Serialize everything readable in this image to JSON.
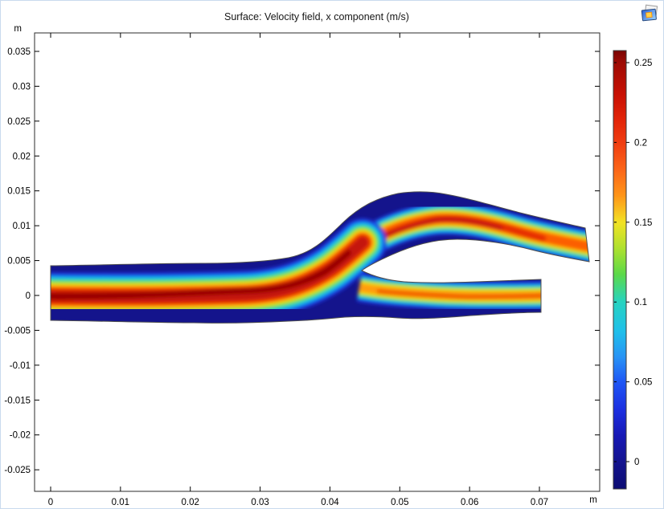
{
  "title": "Surface: Velocity field, x component (m/s)",
  "toolbar": {
    "icon": "plot-thumbnail-icon"
  },
  "axes": {
    "x_unit": "m",
    "y_unit": "m",
    "x_tick_labels": [
      "0",
      "0.01",
      "0.02",
      "0.03",
      "0.04",
      "0.05",
      "0.06",
      "0.07"
    ],
    "y_tick_labels": [
      "0.035",
      "0.03",
      "0.025",
      "0.02",
      "0.015",
      "0.01",
      "0.005",
      "0",
      "-0.005",
      "-0.01",
      "-0.015",
      "-0.02",
      "-0.025"
    ]
  },
  "colorbar": {
    "orientation": "vertical",
    "tick_labels": [
      "0.25",
      "0.2",
      "0.15",
      "0.1",
      "0.05",
      "0"
    ],
    "top_color": "#7a0403",
    "bottom_color": "#0c0c72"
  },
  "chart_data": {
    "type": "heatmap",
    "title": "Surface: Velocity field, x component (m/s)",
    "field": "Velocity field, x component",
    "units": {
      "x": "m",
      "y": "m",
      "value": "m/s"
    },
    "x_ticks": [
      0,
      0.01,
      0.02,
      0.03,
      0.04,
      0.05,
      0.06,
      0.07
    ],
    "y_ticks": [
      0.035,
      0.03,
      0.025,
      0.02,
      0.015,
      0.01,
      0.005,
      0,
      -0.005,
      -0.01,
      -0.015,
      -0.02,
      -0.025
    ],
    "xlim": [
      -0.002,
      0.0785
    ],
    "ylim": [
      -0.028,
      0.0376
    ],
    "colorbar_ticks": [
      0.25,
      0.2,
      0.15,
      0.1,
      0.05,
      0
    ],
    "colormap": "rainbow (dark navy -> blue -> cyan -> green -> yellow -> orange -> red -> dark red)",
    "geometry": "2D artery bifurcation: main vessel from x=0 to x~0.044 m centered near y=0 (width ~0.008 m), splitting at x~0.044 m into an upper branch rising to y~0.010 m and exiting at x~0.0775 m, and a lower narrower branch continuing to x~0.070 m near y=0",
    "field_summary": [
      {
        "region": "main vessel core (0 < x < 0.04 m, y ~ 0)",
        "x_velocity_mps": "~0.24-0.26 (dark red)"
      },
      {
        "region": "bend into upper branch (x ~ 0.04-0.047 m)",
        "x_velocity_mps": "~0.22-0.25 (red)"
      },
      {
        "region": "upper branch core (0.05 < x < 0.065 m)",
        "x_velocity_mps": "~0.20-0.23 (red)"
      },
      {
        "region": "upper branch outlet core (x ~ 0.0775 m)",
        "x_velocity_mps": "~0.18-0.20 (orange)"
      },
      {
        "region": "lower branch core (0.05 < x < 0.07 m)",
        "x_velocity_mps": "~0.18-0.20 (orange)"
      },
      {
        "region": "vessel walls (all boundaries)",
        "x_velocity_mps": "~0 (no-slip, dark navy)"
      },
      {
        "region": "outer wall below bifurcation apex (x ~ 0.045-0.055 m)",
        "x_velocity_mps": "~0-0.02 (slow / recirculating, dark blue pocket)"
      }
    ]
  }
}
